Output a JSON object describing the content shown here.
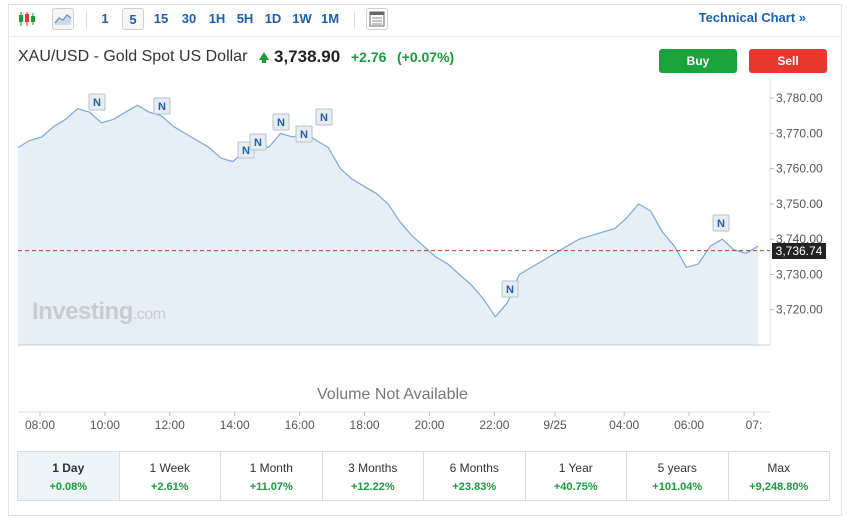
{
  "toolbar": {
    "periods": [
      "1",
      "5",
      "15",
      "30",
      "1H",
      "5H",
      "1D",
      "1W",
      "1M"
    ],
    "active_period": "5",
    "technical_link": "Technical Chart »"
  },
  "header": {
    "title": "XAU/USD - Gold Spot US Dollar",
    "price": "3,738.90",
    "change": "+2.76",
    "change_pct": "(+0.07%)",
    "buy_label": "Buy",
    "sell_label": "Sell"
  },
  "chart_data": {
    "type": "area",
    "xlabel": "",
    "ylabel": "",
    "x_ticks": [
      "08:00",
      "10:00",
      "12:00",
      "14:00",
      "16:00",
      "18:00",
      "20:00",
      "22:00",
      "9/25",
      "04:00",
      "06:00",
      "07:"
    ],
    "y_ticks": [
      3780,
      3770,
      3760,
      3750,
      3740,
      3730,
      3720
    ],
    "y_tick_labels": [
      "3,780.00",
      "3,770.00",
      "3,760.00",
      "3,750.00",
      "3,740.00",
      "3,730.00",
      "3,720.00"
    ],
    "ylim": [
      3710,
      3784
    ],
    "series": [
      {
        "values": [
          3766,
          3768,
          3769,
          3772,
          3774,
          3777,
          3776,
          3773,
          3774,
          3776,
          3778,
          3776,
          3775,
          3772,
          3770,
          3768,
          3766,
          3763,
          3762,
          3765,
          3767,
          3766,
          3770,
          3769,
          3770,
          3768,
          3766,
          3760,
          3757,
          3755,
          3753,
          3750,
          3745,
          3741,
          3738,
          3735,
          3733,
          3730,
          3727,
          3723,
          3718,
          3722,
          3730,
          3732,
          3734,
          3736,
          3738,
          3740,
          3741,
          3742,
          3743,
          3746,
          3750,
          3748,
          3742,
          3738,
          3732,
          3733,
          3738,
          3740,
          3737,
          3736,
          3738
        ]
      }
    ],
    "last_value": 3736.74,
    "last_value_label": "3,736.74",
    "news_markers": [
      "N",
      "N",
      "N",
      "N",
      "N",
      "N",
      "N",
      "N",
      "N"
    ],
    "grid": false,
    "volume_text": "Volume Not Available",
    "watermark": "Investing",
    "watermark_suffix": ".com"
  },
  "performance": [
    {
      "label": "1 Day",
      "value": "+0.08%"
    },
    {
      "label": "1 Week",
      "value": "+2.61%"
    },
    {
      "label": "1 Month",
      "value": "+11.07%"
    },
    {
      "label": "3 Months",
      "value": "+12.22%"
    },
    {
      "label": "6 Months",
      "value": "+23.83%"
    },
    {
      "label": "1 Year",
      "value": "+40.75%"
    },
    {
      "label": "5 years",
      "value": "+101.04%"
    },
    {
      "label": "Max",
      "value": "+9,248.80%"
    }
  ],
  "colors": {
    "line": "#7da7d6",
    "fill": "#e6eef6",
    "positive": "#1a9a3a",
    "buy": "#1aa33a",
    "sell": "#e8382e",
    "link": "#1a5fb4"
  }
}
